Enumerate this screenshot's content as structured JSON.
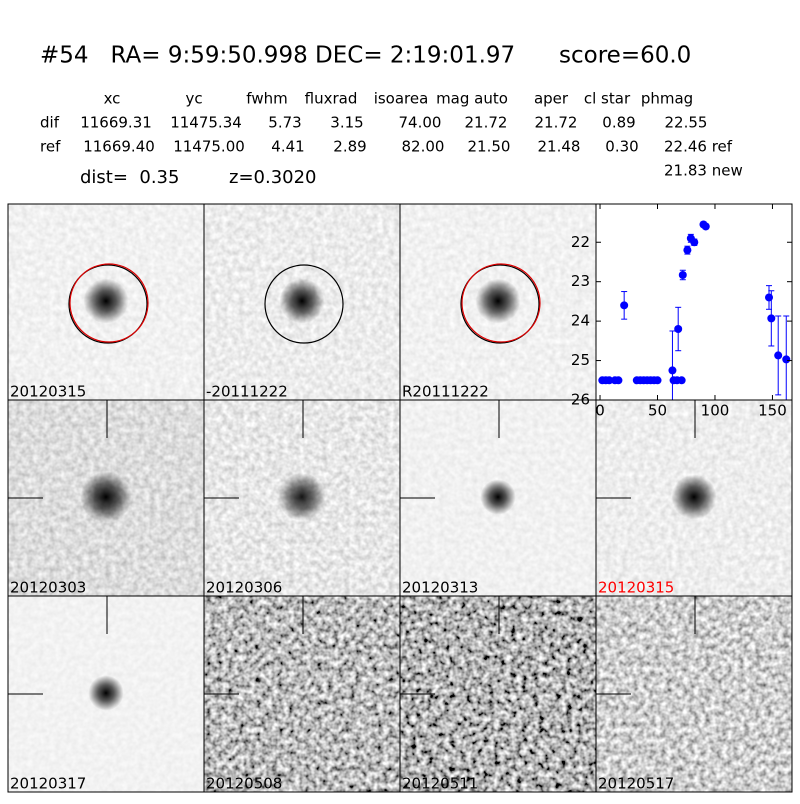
{
  "header": {
    "title": "#54   RA= 9:59:50.998 DEC= 2:19:01.97      score=60.0"
  },
  "table": {
    "columns": [
      "xc",
      "yc",
      "fwhm",
      "fluxrad",
      "isoarea",
      "mag auto",
      "aper",
      "cl star",
      "phmag"
    ],
    "rows": [
      [
        "dif",
        "11669.31",
        "11475.34",
        "5.73",
        "3.15",
        "74.00",
        "21.72",
        "21.72",
        "0.89",
        "22.55"
      ],
      [
        "ref",
        "11669.40",
        "11475.00",
        "4.41",
        "2.89",
        "82.00",
        "21.50",
        "21.48",
        "0.30",
        "22.46 ref"
      ]
    ],
    "extra": "21.83 new"
  },
  "dist": "dist=  0.35",
  "z": "z=0.3020",
  "stamps": [
    {
      "label": "20120315"
    },
    {
      "label": "-20111222"
    },
    {
      "label": "R20111222"
    },
    {
      "label": "20120303"
    },
    {
      "label": "20120306"
    },
    {
      "label": "20120313"
    },
    {
      "label": "20120315"
    },
    {
      "label": "20120317"
    },
    {
      "label": "20120508"
    },
    {
      "label": "20120511"
    },
    {
      "label": "20120517"
    }
  ],
  "light_curve": {
    "type": "scatter",
    "color": "#0000ff",
    "x": [
      2,
      5,
      8,
      13,
      16,
      21,
      32,
      35,
      38,
      41,
      44,
      47,
      50,
      63,
      64,
      68,
      67,
      71,
      72,
      76,
      79,
      82,
      90,
      92,
      147,
      149,
      155,
      162
    ],
    "y": [
      25.5,
      25.5,
      25.5,
      25.5,
      25.5,
      23.6,
      25.5,
      25.5,
      25.5,
      25.5,
      25.5,
      25.5,
      25.5,
      25.25,
      25.5,
      24.2,
      25.5,
      25.5,
      22.83,
      22.2,
      21.9,
      22.0,
      21.55,
      21.6,
      23.4,
      23.93,
      24.87,
      24.97
    ],
    "errors": [
      0.05,
      0.05,
      0.05,
      0.05,
      0.05,
      0.35,
      0.05,
      0.05,
      0.05,
      0.05,
      0.05,
      0.05,
      0.05,
      1.0,
      0.05,
      0.55,
      0.05,
      0.05,
      0.12,
      0.1,
      0.1,
      0.08,
      0.06,
      0.06,
      0.3,
      0.7,
      1.0,
      1.1
    ],
    "xlim": [
      -3.5,
      167
    ],
    "ylim": [
      26,
      21.03
    ],
    "xticks": [
      0,
      50,
      100,
      150
    ],
    "yticks": [
      22,
      23,
      24,
      25,
      26
    ]
  }
}
